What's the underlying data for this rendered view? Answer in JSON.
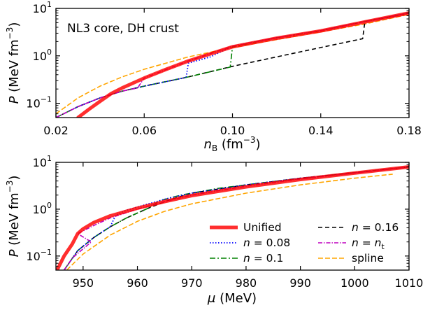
{
  "chart_data": [
    {
      "type": "line",
      "panel": "top",
      "annotation": "NL3 core, DH crust",
      "xlabel_base": "n",
      "xlabel_sub": "B",
      "xlabel_unit": " (fm",
      "xlabel_unit_exp": "−3",
      "xlabel_unit_close": ")",
      "ylabel_sym": "P",
      "ylabel_unit": " (MeV fm",
      "ylabel_unit_exp": "−3",
      "ylabel_unit_close": ")",
      "xlim": [
        0.02,
        0.18
      ],
      "ylim": [
        0.05,
        10
      ],
      "yscale": "log",
      "xticks": [
        {
          "v": 0.02,
          "label": "0.02"
        },
        {
          "v": 0.06,
          "label": "0.06"
        },
        {
          "v": 0.1,
          "label": "0.10"
        },
        {
          "v": 0.14,
          "label": "0.14"
        },
        {
          "v": 0.18,
          "label": "0.18"
        }
      ],
      "yticks": [
        {
          "v": 0.1,
          "base": "10",
          "exp": "−1"
        },
        {
          "v": 1,
          "base": "10",
          "exp": "0"
        },
        {
          "v": 10,
          "base": "10",
          "exp": "1"
        }
      ],
      "series": [
        {
          "key": "spline",
          "color": "#ffa500",
          "dash": "7,3",
          "width": 1.6,
          "points": [
            [
              0.02,
              0.06
            ],
            [
              0.03,
              0.13
            ],
            [
              0.04,
              0.23
            ],
            [
              0.05,
              0.36
            ],
            [
              0.06,
              0.52
            ],
            [
              0.08,
              0.95
            ],
            [
              0.1,
              1.5
            ],
            [
              0.12,
              2.2
            ],
            [
              0.14,
              3.2
            ],
            [
              0.16,
              4.7
            ],
            [
              0.18,
              7.5
            ]
          ]
        },
        {
          "key": "n016",
          "color": "#000000",
          "dash": "6,4",
          "width": 1.6,
          "points": [
            [
              0.02,
              0.05
            ],
            [
              0.03,
              0.085
            ],
            [
              0.04,
              0.13
            ],
            [
              0.05,
              0.18
            ],
            [
              0.06,
              0.23
            ],
            [
              0.08,
              0.36
            ],
            [
              0.1,
              0.6
            ],
            [
              0.12,
              0.95
            ],
            [
              0.14,
              1.5
            ],
            [
              0.159,
              2.3
            ],
            [
              0.16,
              5.3
            ],
            [
              0.17,
              6.4
            ],
            [
              0.18,
              8.0
            ]
          ]
        },
        {
          "key": "n01",
          "color": "#008000",
          "dash": "8,3,2,3",
          "width": 1.6,
          "points": [
            [
              0.02,
              0.05
            ],
            [
              0.03,
              0.085
            ],
            [
              0.04,
              0.13
            ],
            [
              0.05,
              0.18
            ],
            [
              0.06,
              0.23
            ],
            [
              0.08,
              0.36
            ],
            [
              0.099,
              0.58
            ],
            [
              0.1,
              1.55
            ],
            [
              0.12,
              2.4
            ],
            [
              0.14,
              3.4
            ],
            [
              0.16,
              5.3
            ],
            [
              0.18,
              8.0
            ]
          ]
        },
        {
          "key": "n008",
          "color": "#0000ff",
          "dash": "1.5,2.5",
          "width": 1.8,
          "points": [
            [
              0.02,
              0.05
            ],
            [
              0.03,
              0.085
            ],
            [
              0.04,
              0.13
            ],
            [
              0.05,
              0.18
            ],
            [
              0.06,
              0.23
            ],
            [
              0.079,
              0.35
            ],
            [
              0.08,
              0.7
            ],
            [
              0.09,
              0.95
            ],
            [
              0.1,
              1.6
            ],
            [
              0.12,
              2.4
            ],
            [
              0.14,
              3.4
            ],
            [
              0.16,
              5.3
            ],
            [
              0.18,
              8.0
            ]
          ]
        },
        {
          "key": "nt",
          "color": "#bf00bf",
          "dash": "6,2,1.5,2",
          "width": 1.6,
          "points": [
            [
              0.02,
              0.05
            ],
            [
              0.03,
              0.085
            ],
            [
              0.04,
              0.13
            ],
            [
              0.05,
              0.18
            ],
            [
              0.057,
              0.21
            ],
            [
              0.06,
              0.34
            ],
            [
              0.08,
              0.78
            ],
            [
              0.1,
              1.6
            ],
            [
              0.12,
              2.4
            ],
            [
              0.14,
              3.4
            ],
            [
              0.16,
              5.3
            ],
            [
              0.18,
              8.0
            ]
          ]
        },
        {
          "key": "unified",
          "color": "#ff0000",
          "dash": "",
          "width": 5,
          "opacity": 0.82,
          "points": [
            [
              0.03,
              0.05
            ],
            [
              0.035,
              0.075
            ],
            [
              0.04,
              0.11
            ],
            [
              0.045,
              0.16
            ],
            [
              0.05,
              0.21
            ],
            [
              0.06,
              0.34
            ],
            [
              0.07,
              0.52
            ],
            [
              0.08,
              0.78
            ],
            [
              0.09,
              1.1
            ],
            [
              0.1,
              1.55
            ],
            [
              0.12,
              2.35
            ],
            [
              0.14,
              3.35
            ],
            [
              0.16,
              5.2
            ],
            [
              0.18,
              8.0
            ]
          ]
        }
      ]
    },
    {
      "type": "line",
      "panel": "bottom",
      "xlabel_sym": "μ",
      "xlabel_unit": " (MeV)",
      "ylabel_sym": "P",
      "ylabel_unit": " (MeV fm",
      "ylabel_unit_exp": "−3",
      "ylabel_unit_close": ")",
      "xlim": [
        945,
        1010
      ],
      "ylim": [
        0.05,
        10
      ],
      "yscale": "log",
      "xticks": [
        {
          "v": 950,
          "label": "950"
        },
        {
          "v": 960,
          "label": "960"
        },
        {
          "v": 970,
          "label": "970"
        },
        {
          "v": 980,
          "label": "980"
        },
        {
          "v": 990,
          "label": "990"
        },
        {
          "v": 1000,
          "label": "1000"
        },
        {
          "v": 1010,
          "label": "1010"
        }
      ],
      "yticks": [
        {
          "v": 0.1,
          "base": "10",
          "exp": "−1"
        },
        {
          "v": 1,
          "base": "10",
          "exp": "0"
        },
        {
          "v": 10,
          "base": "10",
          "exp": "1"
        }
      ],
      "series": [
        {
          "key": "spline",
          "color": "#ffa500",
          "dash": "7,3",
          "width": 1.6,
          "points": [
            [
              947,
              0.05
            ],
            [
              950,
              0.11
            ],
            [
              955,
              0.28
            ],
            [
              960,
              0.55
            ],
            [
              965,
              0.9
            ],
            [
              970,
              1.3
            ],
            [
              980,
              2.2
            ],
            [
              990,
              3.3
            ],
            [
              1000,
              4.6
            ],
            [
              1007,
              5.6
            ]
          ]
        },
        {
          "key": "n016",
          "color": "#000000",
          "dash": "6,4",
          "width": 1.6,
          "points": [
            [
              946.5,
              0.05
            ],
            [
              949,
              0.13
            ],
            [
              952,
              0.25
            ],
            [
              955,
              0.42
            ],
            [
              958,
              0.65
            ],
            [
              962,
              1.05
            ],
            [
              966,
              1.6
            ],
            [
              970,
              2.2
            ],
            [
              980,
              3.3
            ],
            [
              990,
              4.6
            ],
            [
              1000,
              6.0
            ],
            [
              1010,
              8.0
            ]
          ]
        },
        {
          "key": "n01",
          "color": "#008000",
          "dash": "8,3,2,3",
          "width": 1.6,
          "points": [
            [
              946.5,
              0.05
            ],
            [
              949,
              0.13
            ],
            [
              952,
              0.25
            ],
            [
              955,
              0.42
            ],
            [
              958,
              0.65
            ],
            [
              962,
              1.05
            ],
            [
              964,
              1.5
            ],
            [
              968,
              2.0
            ],
            [
              975,
              2.8
            ],
            [
              985,
              3.9
            ],
            [
              995,
              5.2
            ],
            [
              1010,
              8.0
            ]
          ]
        },
        {
          "key": "n008",
          "color": "#0000ff",
          "dash": "1.5,2.5",
          "width": 1.8,
          "points": [
            [
              946.5,
              0.05
            ],
            [
              949,
              0.13
            ],
            [
              952,
              0.25
            ],
            [
              955,
              0.42
            ],
            [
              956,
              0.75
            ],
            [
              958,
              0.95
            ],
            [
              962,
              1.3
            ],
            [
              966,
              1.75
            ],
            [
              970,
              2.2
            ],
            [
              980,
              3.3
            ],
            [
              990,
              4.6
            ],
            [
              1000,
              6.0
            ],
            [
              1010,
              8.0
            ]
          ]
        },
        {
          "key": "nt",
          "color": "#bf00bf",
          "dash": "6,2,1.5,2",
          "width": 1.6,
          "points": [
            [
              946.5,
              0.05
            ],
            [
              948,
              0.09
            ],
            [
              951.5,
              0.2
            ],
            [
              949,
              0.3
            ],
            [
              952,
              0.45
            ],
            [
              955,
              0.65
            ],
            [
              960,
              1.0
            ],
            [
              965,
              1.45
            ],
            [
              970,
              2.0
            ],
            [
              980,
              3.1
            ],
            [
              990,
              4.4
            ],
            [
              1000,
              5.9
            ],
            [
              1010,
              8.0
            ]
          ]
        },
        {
          "key": "unified",
          "color": "#ff0000",
          "dash": "",
          "width": 5,
          "opacity": 0.82,
          "points": [
            [
              945.2,
              0.05
            ],
            [
              946.5,
              0.1
            ],
            [
              948,
              0.18
            ],
            [
              949,
              0.3
            ],
            [
              950,
              0.38
            ],
            [
              952,
              0.52
            ],
            [
              955,
              0.72
            ],
            [
              960,
              1.05
            ],
            [
              965,
              1.45
            ],
            [
              970,
              1.95
            ],
            [
              980,
              3.0
            ],
            [
              990,
              4.3
            ],
            [
              1000,
              5.9
            ],
            [
              1010,
              8.0
            ]
          ]
        }
      ],
      "legend": {
        "placement": "lower-right",
        "entries": [
          {
            "key": "unified",
            "label": "Unified",
            "kind": "plain"
          },
          {
            "key": "n016",
            "label": "= 0.16",
            "kind": "n"
          },
          {
            "key": "n008",
            "label": "= 0.08",
            "kind": "n"
          },
          {
            "key": "nt",
            "label": "= ",
            "kind": "nt",
            "sub": "t"
          },
          {
            "key": "n01",
            "label": "= 0.1",
            "kind": "n"
          },
          {
            "key": "spline",
            "label": "spline",
            "kind": "plain"
          }
        ]
      }
    }
  ]
}
